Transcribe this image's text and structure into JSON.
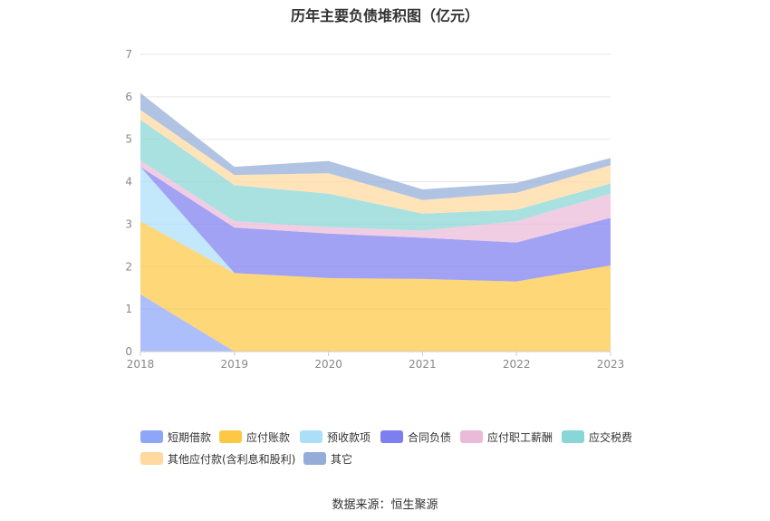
{
  "chart_data": {
    "type": "area",
    "stacked": true,
    "title": "历年主要负债堆积图（亿元）",
    "categories": [
      "2018",
      "2019",
      "2020",
      "2021",
      "2022",
      "2023"
    ],
    "ylim": [
      0,
      7
    ],
    "yticks": [
      "0",
      "1",
      "2",
      "3",
      "4",
      "5",
      "6",
      "7"
    ],
    "grid": true,
    "legend_position": "bottom",
    "series": [
      {
        "name": "短期借款",
        "color": "#8ea6f8",
        "values": [
          1.35,
          0.0,
          0.0,
          0.0,
          0.0,
          0.0
        ]
      },
      {
        "name": "应付账款",
        "color": "#fdc844",
        "values": [
          1.72,
          1.85,
          1.73,
          1.71,
          1.65,
          2.03
        ]
      },
      {
        "name": "预收款项",
        "color": "#acdefa",
        "values": [
          1.28,
          0.0,
          0.0,
          0.0,
          0.0,
          0.0
        ]
      },
      {
        "name": "合同负债",
        "color": "#7d7ef0",
        "values": [
          0.0,
          1.07,
          1.05,
          0.97,
          0.92,
          1.12
        ]
      },
      {
        "name": "应付职工薪酬",
        "color": "#ebbad9",
        "values": [
          0.15,
          0.15,
          0.15,
          0.17,
          0.5,
          0.57
        ]
      },
      {
        "name": "应交税费",
        "color": "#88d6d6",
        "values": [
          0.96,
          0.85,
          0.79,
          0.4,
          0.27,
          0.24
        ]
      },
      {
        "name": "其他应付款(含利息和股利)",
        "color": "#ffd9a0",
        "values": [
          0.23,
          0.24,
          0.48,
          0.32,
          0.4,
          0.43
        ]
      },
      {
        "name": "其它",
        "color": "#93acd8",
        "values": [
          0.4,
          0.19,
          0.29,
          0.25,
          0.23,
          0.17
        ]
      }
    ]
  },
  "source": "数据来源：恒生聚源"
}
